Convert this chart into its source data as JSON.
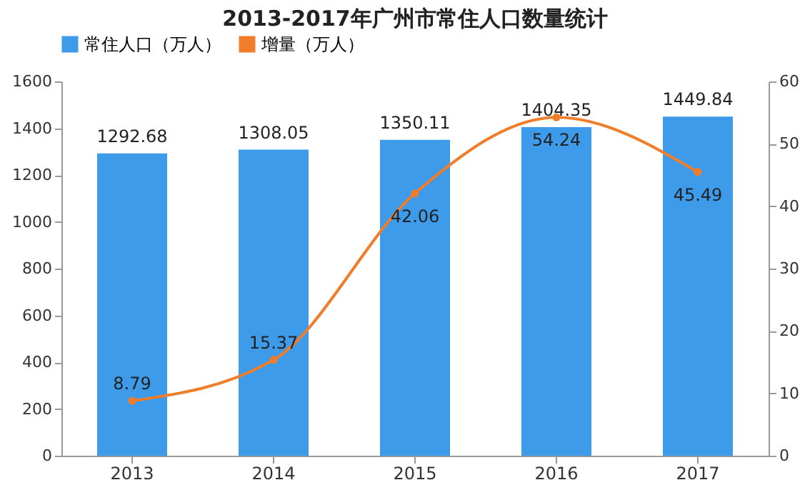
{
  "chart_data": {
    "type": "bar",
    "title": "2013-2017年广州市常住人口数量统计",
    "categories": [
      "2013",
      "2014",
      "2015",
      "2016",
      "2017"
    ],
    "series": [
      {
        "name": "常住人口（万人）",
        "type": "bar",
        "color": "#3d9be9",
        "values": [
          1292.68,
          1308.05,
          1350.11,
          1404.35,
          1449.84
        ]
      },
      {
        "name": "增量（万人）",
        "type": "line",
        "axis": "y2",
        "color": "#f07d2a",
        "marker": "circle",
        "values": [
          8.79,
          15.37,
          42.06,
          54.24,
          45.49
        ]
      }
    ],
    "ylim": [
      0,
      1600
    ],
    "yticks": [
      0,
      200,
      400,
      600,
      800,
      1000,
      1200,
      1400,
      1600
    ],
    "y2lim": [
      0,
      60
    ],
    "y2ticks": [
      0,
      10,
      20,
      30,
      40,
      50,
      60
    ],
    "data_labels": true,
    "legend": "top",
    "grid": false
  }
}
